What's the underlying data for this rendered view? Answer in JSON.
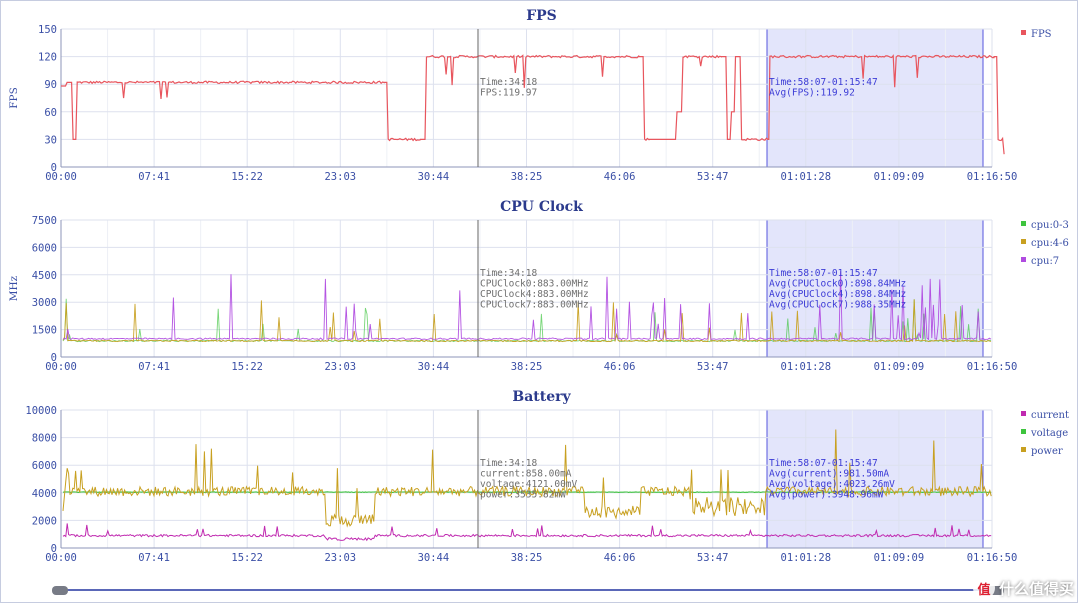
{
  "x_ticks": [
    "00:00",
    "07:41",
    "15:22",
    "23:03",
    "30:44",
    "38:25",
    "46:06",
    "53:47",
    "01:01:28",
    "01:09:09",
    "01:16:50"
  ],
  "cursor_time": "34:18",
  "selection": {
    "from": "58:07",
    "to": "01:15:47"
  },
  "watermark": "值 什么值得买",
  "chart_data": [
    {
      "type": "line",
      "title": "FPS",
      "ylabel": "FPS",
      "ylim": [
        0,
        150
      ],
      "yticks": [
        0,
        30,
        60,
        90,
        120,
        150
      ],
      "xlim_seconds": [
        0,
        4610
      ],
      "series": [
        {
          "name": "FPS",
          "color": "#e8555d",
          "points": [
            [
              0,
              88
            ],
            [
              30,
              92
            ],
            [
              60,
              30
            ],
            [
              80,
              92
            ],
            [
              1600,
              92
            ],
            [
              1620,
              30
            ],
            [
              1780,
              30
            ],
            [
              1810,
              120
            ],
            [
              2860,
              120
            ],
            [
              2890,
              30
            ],
            [
              2910,
              30
            ],
            [
              3050,
              60
            ],
            [
              3080,
              120
            ],
            [
              3270,
              120
            ],
            [
              3300,
              30
            ],
            [
              3320,
              60
            ],
            [
              3340,
              120
            ],
            [
              3370,
              30
            ],
            [
              3500,
              30
            ],
            [
              3510,
              120
            ],
            [
              4620,
              120
            ],
            [
              4640,
              30
            ],
            [
              4670,
              30
            ]
          ]
        }
      ],
      "annotations": [
        {
          "color": "#6f6f6f",
          "lines": [
            "Time:34:18",
            "FPS:119.97"
          ]
        },
        {
          "color": "#3b3bd6",
          "lines": [
            "Time:58:07-01:15:47",
            "Avg(FPS):119.92"
          ]
        }
      ]
    },
    {
      "type": "line",
      "title": "CPU Clock",
      "ylabel": "MHz",
      "ylim": [
        0,
        7500
      ],
      "yticks": [
        0,
        1500,
        3000,
        4500,
        6000,
        7500
      ],
      "series": [
        {
          "name": "cpu:0-3",
          "color": "#3ec43e",
          "baseline": 883
        },
        {
          "name": "cpu:4-6",
          "color": "#c8a020",
          "baseline": 883
        },
        {
          "name": "cpu:7",
          "color": "#b04be0",
          "baseline": 1000
        }
      ],
      "annotations": [
        {
          "color": "#6f6f6f",
          "lines": [
            "Time:34:18",
            "CPUClock0:883.00MHz",
            "CPUClock4:883.00MHz",
            "CPUClock7:883.00MHz"
          ]
        },
        {
          "color": "#3b3bd6",
          "lines": [
            "Time:58:07-01:15:47",
            "Avg(CPUClock0):898.84MHz",
            "Avg(CPUClock4):898.84MHz",
            "Avg(CPUClock7):988.35MHz"
          ]
        }
      ]
    },
    {
      "type": "line",
      "title": "Battery",
      "ylabel": "",
      "ylim": [
        0,
        10000
      ],
      "yticks": [
        0,
        2000,
        4000,
        6000,
        8000,
        10000
      ],
      "series": [
        {
          "name": "current",
          "color": "#c02ab0",
          "baseline": 900
        },
        {
          "name": "voltage",
          "color": "#3ec43e",
          "baseline": 4050
        },
        {
          "name": "power",
          "color": "#c8a020",
          "baseline": 3900
        }
      ],
      "annotations": [
        {
          "color": "#6f6f6f",
          "lines": [
            "Time:34:18",
            "current:858.00mA",
            "voltage:4121.00mV",
            "power:3535.82mW"
          ]
        },
        {
          "color": "#3b3bd6",
          "lines": [
            "Time:58:07-01:15:47",
            "Avg(current):981.50mA",
            "Avg(voltage):4023.26mV",
            "Avg(power):3948.96mW"
          ]
        }
      ]
    }
  ]
}
